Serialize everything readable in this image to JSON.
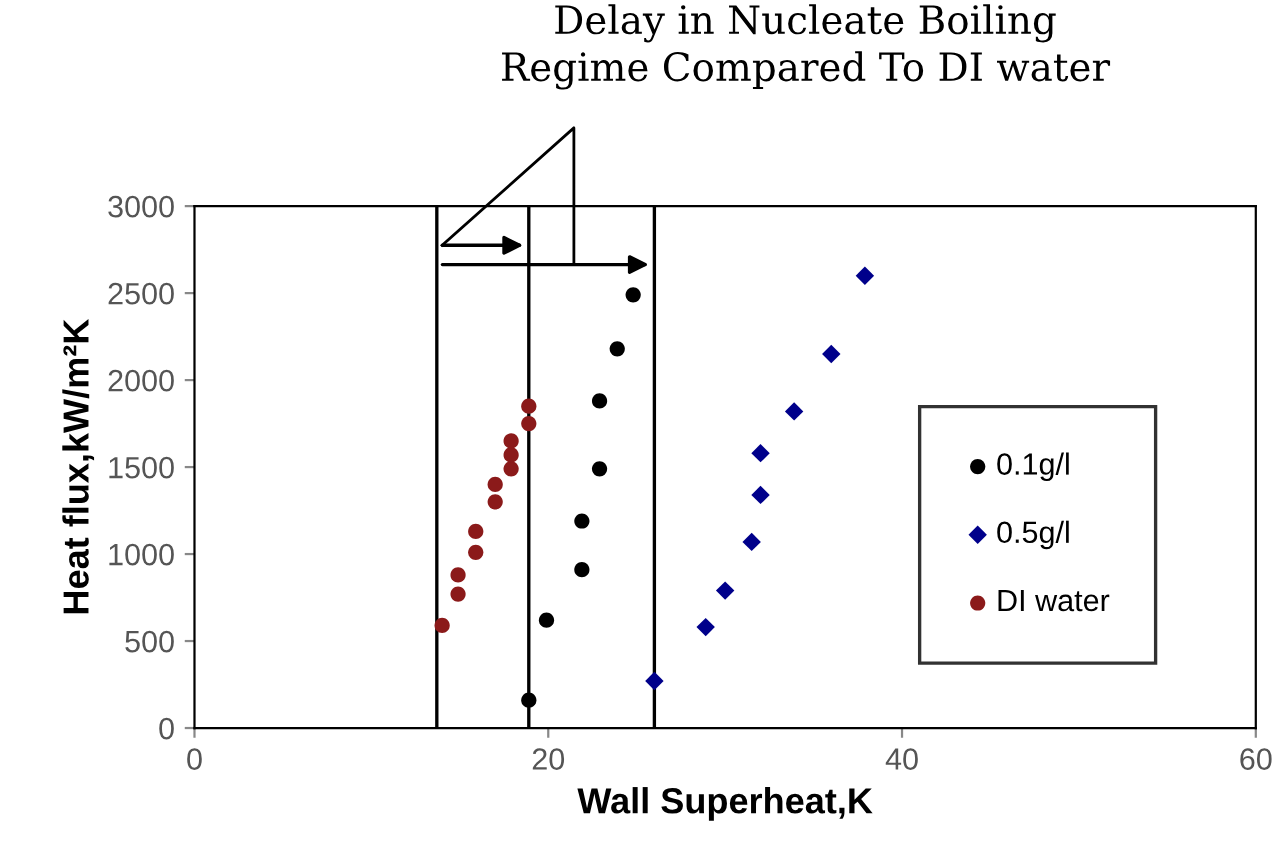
{
  "chart_data": {
    "type": "scatter",
    "xlabel": "Wall Superheat,K",
    "ylabel": "Heat flux,kW/m²K",
    "annotations": [
      "Delay in Nucleate Boiling\nRegime Compared To DI water"
    ],
    "series": [
      {
        "name": "0.1g/l",
        "color": "#000000",
        "marker": "circle",
        "x": [
          18.9,
          19.9,
          21.9,
          21.9,
          22.9,
          22.9,
          23.9,
          24.8
        ],
        "values": [
          160,
          620,
          910,
          1190,
          1490,
          1880,
          2180,
          2490
        ]
      },
      {
        "name": "0.5g/l",
        "color": "#00008b",
        "marker": "diamond",
        "x": [
          26.0,
          28.9,
          30.0,
          31.5,
          32.0,
          32.0,
          33.9,
          36.0,
          37.9
        ],
        "values": [
          270,
          580,
          790,
          1070,
          1340,
          1580,
          1820,
          2150,
          2600
        ]
      },
      {
        "name": "DI water",
        "color": "#8b1a1a",
        "marker": "circle",
        "x": [
          14.0,
          14.9,
          14.9,
          15.9,
          15.9,
          17.0,
          17.0,
          17.9,
          17.9,
          17.9,
          18.9,
          18.9
        ],
        "values": [
          590,
          770,
          880,
          1010,
          1130,
          1300,
          1400,
          1490,
          1570,
          1650,
          1750,
          1850
        ]
      }
    ],
    "ref_lines": [
      {
        "axis": "x",
        "value": 13.7,
        "color": "#000000"
      },
      {
        "axis": "x",
        "value": 18.9,
        "color": "#000000"
      },
      {
        "axis": "x",
        "value": 26.0,
        "color": "#000000"
      }
    ],
    "xlim": [
      0,
      60
    ],
    "xticks": [
      0,
      20,
      40,
      60
    ],
    "ylim": [
      0,
      3000
    ],
    "yticks": [
      0,
      500,
      1000,
      1500,
      2000,
      2500,
      3000
    ],
    "grid": false,
    "legend": "right"
  }
}
